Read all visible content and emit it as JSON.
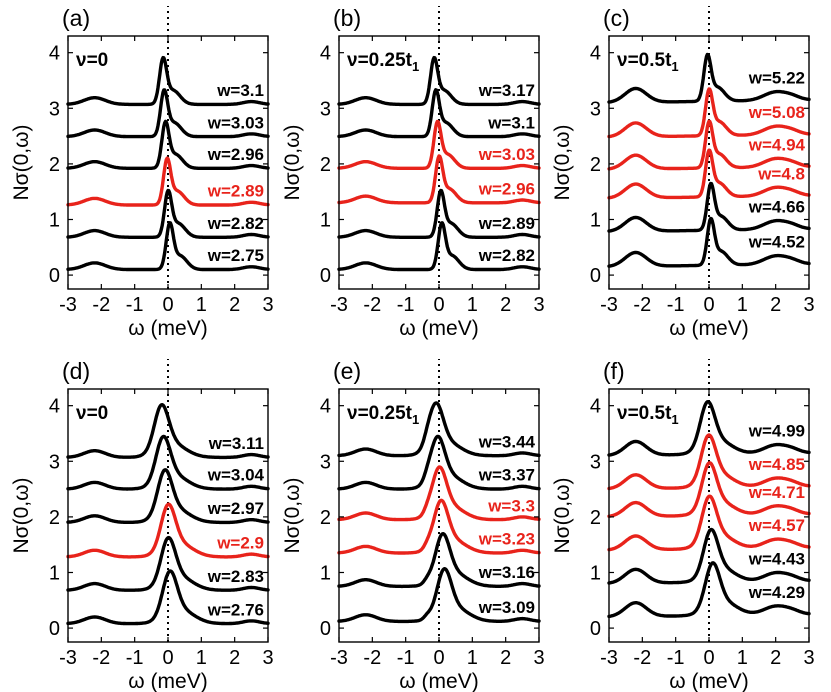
{
  "colors": {
    "black": "#000000",
    "red": "#e8231b"
  },
  "chart_data": [
    {
      "type": "line",
      "panel": "(a)",
      "nu": "ν=0",
      "xlabel": "ω (meV)",
      "ylabel": "Nσ(0,ω)",
      "xlim": [
        -3,
        3
      ],
      "ylim": [
        -0.25,
        4.3
      ],
      "xticks": [
        "-3",
        "-2",
        "-1",
        "0",
        "1",
        "2",
        "3"
      ],
      "yticks": [
        "0",
        "1",
        "2",
        "3",
        "4"
      ],
      "series": [
        {
          "name": "w=3.1",
          "offset": 3.07,
          "peak_x": -0.15,
          "color": "black"
        },
        {
          "name": "w=3.03",
          "offset": 2.49,
          "peak_x": -0.12,
          "color": "black"
        },
        {
          "name": "w=2.96",
          "offset": 1.92,
          "peak_x": -0.08,
          "color": "black"
        },
        {
          "name": "w=2.89",
          "offset": 1.26,
          "peak_x": -0.03,
          "color": "red"
        },
        {
          "name": "w=2.82",
          "offset": 0.68,
          "peak_x": 0.0,
          "color": "black"
        },
        {
          "name": "w=2.75",
          "offset": 0.1,
          "peak_x": 0.05,
          "color": "black"
        }
      ]
    },
    {
      "type": "line",
      "panel": "(b)",
      "nu": "ν=0.25t",
      "nu_sub": "1",
      "xlabel": "ω (meV)",
      "ylabel": "Nσ(0,ω)",
      "xlim": [
        -3,
        3
      ],
      "ylim": [
        -0.25,
        4.3
      ],
      "xticks": [
        "-3",
        "-2",
        "-1",
        "0",
        "1",
        "2",
        "3"
      ],
      "yticks": [
        "0",
        "1",
        "2",
        "3",
        "4"
      ],
      "series": [
        {
          "name": "w=3.17",
          "offset": 3.07,
          "peak_x": -0.15,
          "color": "black"
        },
        {
          "name": "w=3.1",
          "offset": 2.49,
          "peak_x": -0.1,
          "color": "black"
        },
        {
          "name": "w=3.03",
          "offset": 1.92,
          "peak_x": -0.05,
          "color": "red"
        },
        {
          "name": "w=2.96",
          "offset": 1.3,
          "peak_x": 0.0,
          "color": "red"
        },
        {
          "name": "w=2.89",
          "offset": 0.68,
          "peak_x": 0.05,
          "color": "black"
        },
        {
          "name": "w=2.82",
          "offset": 0.1,
          "peak_x": 0.08,
          "color": "black"
        }
      ]
    },
    {
      "type": "line",
      "panel": "(c)",
      "nu": "ν=0.5t",
      "nu_sub": "1",
      "xlabel": "ω (meV)",
      "ylabel": "Nσ(0,ω)",
      "xlim": [
        -3,
        3
      ],
      "ylim": [
        -0.25,
        4.3
      ],
      "xticks": [
        "-3",
        "-2",
        "-1",
        "0",
        "1",
        "2",
        "3"
      ],
      "yticks": [
        "0",
        "1",
        "2",
        "3",
        "4"
      ],
      "series": [
        {
          "name": "w=5.22",
          "offset": 3.1,
          "peak_x": -0.05,
          "color": "black"
        },
        {
          "name": "w=5.08",
          "offset": 2.48,
          "peak_x": 0.0,
          "color": "red"
        },
        {
          "name": "w=4.94",
          "offset": 1.9,
          "peak_x": 0.0,
          "color": "red"
        },
        {
          "name": "w=4.8",
          "offset": 1.38,
          "peak_x": 0.0,
          "color": "red"
        },
        {
          "name": "w=4.66",
          "offset": 0.78,
          "peak_x": 0.05,
          "color": "black"
        },
        {
          "name": "w=4.52",
          "offset": 0.15,
          "peak_x": 0.05,
          "color": "black"
        }
      ]
    },
    {
      "type": "line",
      "panel": "(d)",
      "nu": "ν=0",
      "xlabel": "ω (meV)",
      "ylabel": "Nσ(0,ω)",
      "xlim": [
        -3,
        3
      ],
      "ylim": [
        -0.25,
        4.3
      ],
      "xticks": [
        "-3",
        "-2",
        "-1",
        "0",
        "1",
        "2",
        "3"
      ],
      "yticks": [
        "0",
        "1",
        "2",
        "3",
        "4"
      ],
      "series": [
        {
          "name": "w=3.11",
          "offset": 3.07,
          "peak_x": -0.2,
          "color": "black"
        },
        {
          "name": "w=3.04",
          "offset": 2.5,
          "peak_x": -0.15,
          "color": "black"
        },
        {
          "name": "w=2.97",
          "offset": 1.9,
          "peak_x": -0.1,
          "color": "black"
        },
        {
          "name": "w=2.9",
          "offset": 1.28,
          "peak_x": 0.0,
          "color": "red"
        },
        {
          "name": "w=2.83",
          "offset": 0.68,
          "peak_x": 0.0,
          "color": "black"
        },
        {
          "name": "w=2.76",
          "offset": 0.08,
          "peak_x": 0.05,
          "color": "black"
        }
      ]
    },
    {
      "type": "line",
      "panel": "(e)",
      "nu": "ν=0.25t",
      "nu_sub": "1",
      "xlabel": "ω (meV)",
      "ylabel": "Nσ(0,ω)",
      "xlim": [
        -3,
        3
      ],
      "ylim": [
        -0.25,
        4.3
      ],
      "xticks": [
        "-3",
        "-2",
        "-1",
        "0",
        "1",
        "2",
        "3"
      ],
      "yticks": [
        "0",
        "1",
        "2",
        "3",
        "4"
      ],
      "series": [
        {
          "name": "w=3.44",
          "offset": 3.1,
          "peak_x": -0.1,
          "color": "black"
        },
        {
          "name": "w=3.37",
          "offset": 2.5,
          "peak_x": -0.05,
          "color": "black"
        },
        {
          "name": "w=3.3",
          "offset": 1.95,
          "peak_x": 0.0,
          "color": "red"
        },
        {
          "name": "w=3.23",
          "offset": 1.35,
          "peak_x": 0.05,
          "color": "red"
        },
        {
          "name": "w=3.16",
          "offset": 0.75,
          "peak_x": 0.1,
          "color": "black"
        },
        {
          "name": "w=3.09",
          "offset": 0.12,
          "peak_x": 0.15,
          "color": "black"
        }
      ]
    },
    {
      "type": "line",
      "panel": "(f)",
      "nu": "ν=0.5t",
      "nu_sub": "1",
      "xlabel": "ω (meV)",
      "ylabel": "Nσ(0,ω)",
      "xlim": [
        -3,
        3
      ],
      "ylim": [
        -0.25,
        4.3
      ],
      "xticks": [
        "-3",
        "-2",
        "-1",
        "0",
        "1",
        "2",
        "3"
      ],
      "yticks": [
        "0",
        "1",
        "2",
        "3",
        "4"
      ],
      "series": [
        {
          "name": "w=4.99",
          "offset": 3.1,
          "peak_x": -0.05,
          "color": "black"
        },
        {
          "name": "w=4.85",
          "offset": 2.5,
          "peak_x": -0.02,
          "color": "red"
        },
        {
          "name": "w=4.71",
          "offset": 2.0,
          "peak_x": 0.0,
          "color": "red"
        },
        {
          "name": "w=4.57",
          "offset": 1.4,
          "peak_x": 0.0,
          "color": "red"
        },
        {
          "name": "w=4.43",
          "offset": 0.8,
          "peak_x": 0.05,
          "color": "black"
        },
        {
          "name": "w=4.29",
          "offset": 0.2,
          "peak_x": 0.1,
          "color": "black"
        }
      ]
    }
  ]
}
